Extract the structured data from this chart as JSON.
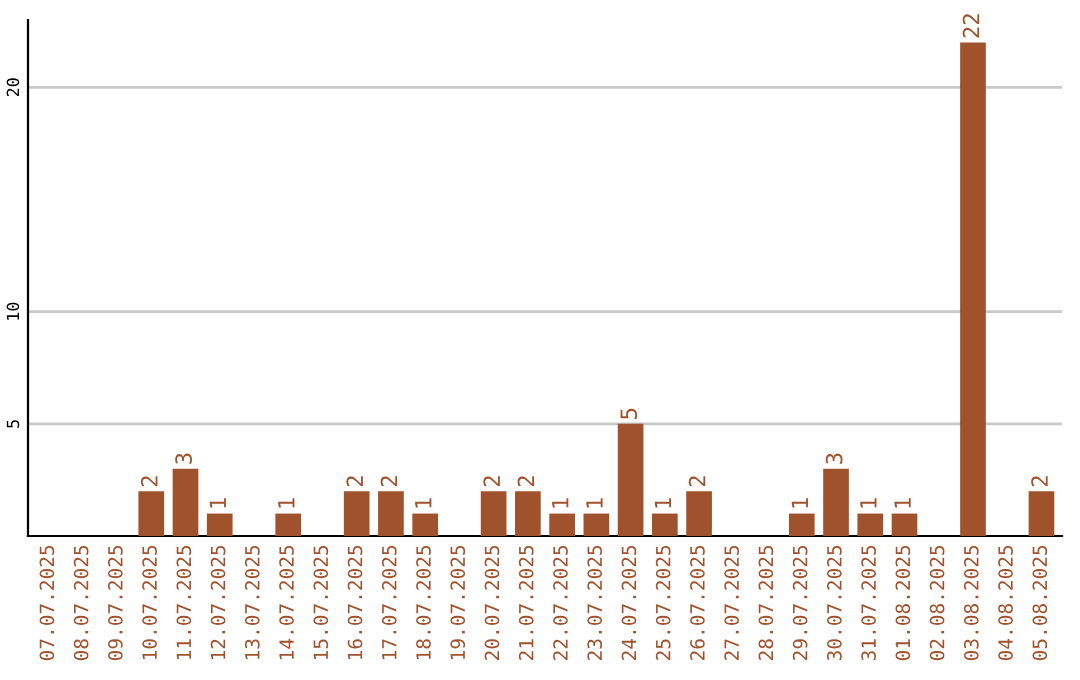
{
  "chart_data": {
    "type": "bar",
    "categories": [
      "07.07.2025",
      "08.07.2025",
      "09.07.2025",
      "10.07.2025",
      "11.07.2025",
      "12.07.2025",
      "13.07.2025",
      "14.07.2025",
      "15.07.2025",
      "16.07.2025",
      "17.07.2025",
      "18.07.2025",
      "19.07.2025",
      "20.07.2025",
      "21.07.2025",
      "22.07.2025",
      "23.07.2025",
      "24.07.2025",
      "25.07.2025",
      "26.07.2025",
      "27.07.2025",
      "28.07.2025",
      "29.07.2025",
      "30.07.2025",
      "31.07.2025",
      "01.08.2025",
      "02.08.2025",
      "03.08.2025",
      "04.08.2025",
      "05.08.2025"
    ],
    "values": [
      null,
      null,
      null,
      2,
      3,
      1,
      null,
      1,
      null,
      2,
      2,
      1,
      null,
      2,
      2,
      1,
      1,
      5,
      1,
      2,
      null,
      null,
      1,
      3,
      1,
      1,
      null,
      22,
      null,
      2
    ],
    "color": "#a0522d",
    "ylim": [
      0,
      23
    ],
    "yticks": [
      5,
      10,
      20
    ],
    "grid": "y",
    "data_labels": true
  }
}
